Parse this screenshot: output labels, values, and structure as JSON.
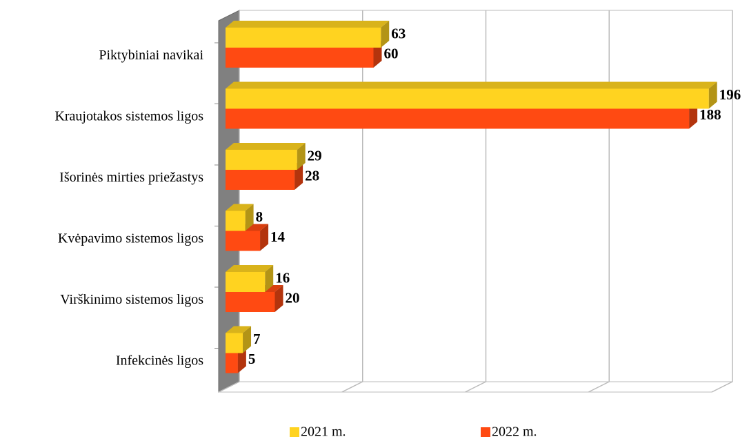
{
  "chart_data": {
    "type": "bar",
    "orientation": "horizontal",
    "categories": [
      "Piktybiniai navikai",
      "Kraujotakos sistemos ligos",
      "Išorinės mirties priežastys",
      "Kvėpavimo sistemos ligos",
      "Virškinimo sistemos ligos",
      "Infekcinės ligos"
    ],
    "series": [
      {
        "name": "2021 m.",
        "color": "#ffd320",
        "values": [
          63,
          196,
          29,
          8,
          16,
          7
        ]
      },
      {
        "name": "2022 m.",
        "color": "#ff4a12",
        "values": [
          60,
          188,
          28,
          14,
          20,
          5
        ]
      }
    ],
    "xlim": [
      0,
      200
    ],
    "xticks": [
      0,
      50,
      100,
      150,
      200
    ],
    "grid": true,
    "legend": "bottom"
  }
}
